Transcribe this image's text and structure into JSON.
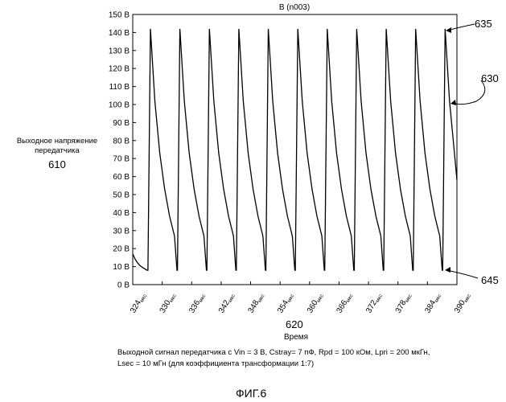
{
  "y_axis_label": {
    "line1": "Выходное напряжение",
    "line2": "передатчика",
    "ref": "610"
  },
  "x_axis_label": {
    "ref": "620",
    "text": "Время"
  },
  "caption": {
    "line1": "Выходной сигнал передатчика с Vin = 3 В, Cstray= 7 пФ, Rpd = 100 кОм, Lpri = 200 мкГн,",
    "line2": "Lsec = 10 мГн (для коэффициента трансформации 1:7)"
  },
  "figure_label": "ФИГ.6",
  "annotations": [
    {
      "ref": "635",
      "target": "peak"
    },
    {
      "ref": "630",
      "target": "decay"
    },
    {
      "ref": "645",
      "target": "trough"
    }
  ],
  "chart_data": {
    "type": "line",
    "title": "В (n003)",
    "xlabel": "Время",
    "ylabel": "Выходное напряжение передатчика",
    "xlim": [
      324,
      390
    ],
    "ylim": [
      0,
      150
    ],
    "x_unit": "мкс",
    "y_unit": "В",
    "x_ticks": [
      324,
      330,
      336,
      342,
      348,
      354,
      360,
      366,
      372,
      378,
      384,
      390
    ],
    "y_ticks": [
      0,
      10,
      20,
      30,
      40,
      50,
      60,
      70,
      80,
      90,
      100,
      110,
      120,
      130,
      140,
      150
    ],
    "grid": false,
    "series": [
      {
        "x": [
          324.0,
          324.5,
          325.0,
          325.5,
          326.0,
          326.9,
          327.1,
          327.6,
          328.5,
          329.5,
          330.5,
          331.5,
          332.5,
          333.0,
          333.1,
          333.6,
          334.5,
          335.5,
          336.5,
          337.5,
          338.5,
          339.0,
          339.1,
          339.6,
          340.5,
          341.5,
          342.5,
          343.5,
          344.5,
          345.0,
          345.1,
          345.6,
          346.5,
          347.5,
          348.5,
          349.5,
          350.5,
          351.0,
          351.1,
          351.6,
          352.5,
          353.5,
          354.5,
          355.5,
          356.5,
          357.0,
          357.1,
          357.6,
          358.5,
          359.5,
          360.5,
          361.5,
          362.5,
          363.0,
          363.1,
          363.6,
          364.5,
          365.5,
          366.5,
          367.5,
          368.5,
          369.0,
          369.1,
          369.6,
          370.5,
          371.5,
          372.5,
          373.5,
          374.5,
          375.0,
          375.1,
          375.6,
          376.5,
          377.5,
          378.5,
          379.5,
          380.5,
          381.0,
          381.1,
          381.6,
          382.5,
          383.5,
          384.5,
          385.5,
          386.5,
          387.0,
          387.1,
          387.6,
          388.5,
          389.5,
          390.0
        ],
        "y": [
          17,
          14,
          12,
          10.5,
          9.5,
          8,
          8,
          142,
          102,
          73,
          53,
          38,
          27,
          8,
          8,
          142,
          102,
          73,
          53,
          38,
          27,
          8,
          8,
          142,
          102,
          73,
          53,
          38,
          27,
          8,
          8,
          142,
          102,
          73,
          53,
          38,
          27,
          8,
          8,
          142,
          102,
          73,
          53,
          38,
          27,
          8,
          8,
          142,
          102,
          73,
          53,
          38,
          27,
          8,
          8,
          142,
          102,
          73,
          53,
          38,
          27,
          8,
          8,
          142,
          102,
          73,
          53,
          38,
          27,
          8,
          8,
          142,
          102,
          73,
          53,
          38,
          27,
          8,
          8,
          142,
          102,
          73,
          53,
          38,
          27,
          8,
          8,
          142,
          102,
          73,
          58
        ]
      }
    ]
  }
}
